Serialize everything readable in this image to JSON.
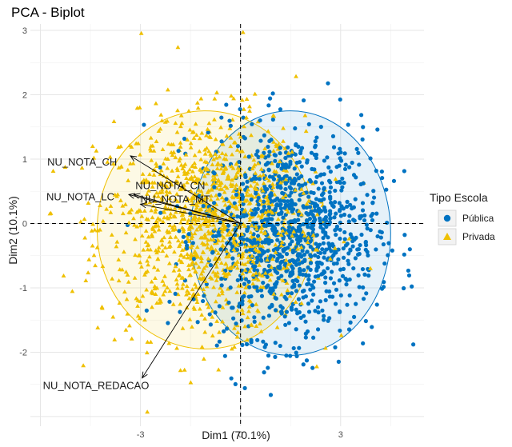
{
  "chart_data": {
    "type": "scatter",
    "title": "PCA - Biplot",
    "xlabel": "Dim1 (70.1%)",
    "ylabel": "Dim2 (10.1%)",
    "xlim": [
      -6.3,
      5.5
    ],
    "ylim": [
      -3.15,
      3.1
    ],
    "x_ticks": [
      -3,
      0,
      3
    ],
    "y_ticks": [
      -2,
      -1,
      0,
      1,
      2,
      3
    ],
    "grid": true,
    "reference_lines": {
      "x": 0,
      "y": 0,
      "style": "dashed"
    },
    "legend": {
      "title": "Tipo Escola",
      "placement": "right",
      "entries": [
        {
          "name": "Pública",
          "marker": "circle",
          "color": "#0073c2"
        },
        {
          "name": "Privada",
          "marker": "triangle",
          "color": "#efc000"
        }
      ]
    },
    "series": [
      {
        "name": "Pública",
        "color": "#0073c2",
        "ellipse": {
          "cx": 1.5,
          "cy": -0.15,
          "rx": 3.0,
          "ry": 1.9
        }
      },
      {
        "name": "Privada",
        "color": "#efc000",
        "ellipse": {
          "cx": -1.05,
          "cy": -0.1,
          "rx": 3.25,
          "ry": 1.85
        }
      }
    ],
    "variables": [
      {
        "name": "NU_NOTA_CH",
        "x": -3.3,
        "y": 1.05
      },
      {
        "name": "NU_NOTA_CN",
        "x": -3.2,
        "y": 0.45
      },
      {
        "name": "NU_NOTA_LC",
        "x": -3.35,
        "y": 0.45
      },
      {
        "name": "NU_NOTA_MT",
        "x": -3.0,
        "y": 0.3
      },
      {
        "name": "NU_NOTA_REDACAO",
        "x": -2.95,
        "y": -2.4
      }
    ]
  }
}
